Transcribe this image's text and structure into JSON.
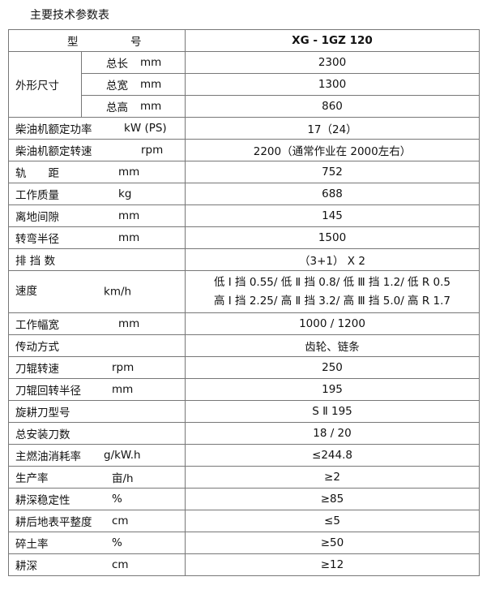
{
  "title": "主要技术参数表",
  "header": {
    "label_left": "型",
    "label_right": "号",
    "model": "XG - 1GZ 120"
  },
  "dimensions": {
    "group_label": "外形尺寸",
    "rows": [
      {
        "label": "总长",
        "unit": "mm",
        "value": "2300"
      },
      {
        "label": "总宽",
        "unit": "mm",
        "value": "1300"
      },
      {
        "label": "总高",
        "unit": "mm",
        "value": "860"
      }
    ]
  },
  "rows": [
    {
      "label": "柴油机额定功率",
      "unit": "kW (PS)",
      "value": "17（24）"
    },
    {
      "label": "柴油机额定转速",
      "unit": "rpm",
      "value": "2200（通常作业在 2000左右）"
    },
    {
      "label": "轨　　距",
      "unit": "mm",
      "value": "752"
    },
    {
      "label": "工作质量",
      "unit": "kg",
      "value": "688"
    },
    {
      "label": "离地间隙",
      "unit": "mm",
      "value": "145"
    },
    {
      "label": "转弯半径",
      "unit": "mm",
      "value": "1500"
    },
    {
      "label": "排 挡 数",
      "unit": "",
      "value": "（3+1） X 2"
    },
    {
      "label": "速度",
      "unit": "km/h",
      "value": "低 Ⅰ 挡 0.55/ 低 Ⅱ 挡 0.8/ 低 Ⅲ 挡 1.2/ 低 R 0.5",
      "value2": "高 Ⅰ 挡 2.25/ 高 Ⅱ 挡 3.2/ 高 Ⅲ 挡 5.0/ 高 R 1.7"
    },
    {
      "label": "工作幅宽",
      "unit": "mm",
      "value": "1000 / 1200"
    },
    {
      "label": "传动方式",
      "unit": "",
      "value": "齿轮、链条"
    },
    {
      "label": "刀辊转速",
      "unit": "rpm",
      "value": "250"
    },
    {
      "label": "刀辊回转半径",
      "unit": "mm",
      "value": "195"
    },
    {
      "label": "旋耕刀型号",
      "unit": "",
      "value": "S Ⅱ 195"
    },
    {
      "label": "总安装刀数",
      "unit": "",
      "value": "18 / 20"
    },
    {
      "label": "主燃油消耗率",
      "unit": "g/kW.h",
      "value": "≤244.8"
    },
    {
      "label": "生产率",
      "unit": "亩/h",
      "value": "≥2"
    },
    {
      "label": "耕深稳定性",
      "unit": "%",
      "value": "≥85"
    },
    {
      "label": "耕后地表平整度",
      "unit": "cm",
      "value": "≤5"
    },
    {
      "label": "碎土率",
      "unit": "%",
      "value": "≥50"
    },
    {
      "label": "耕深",
      "unit": "cm",
      "value": "≥12"
    }
  ]
}
